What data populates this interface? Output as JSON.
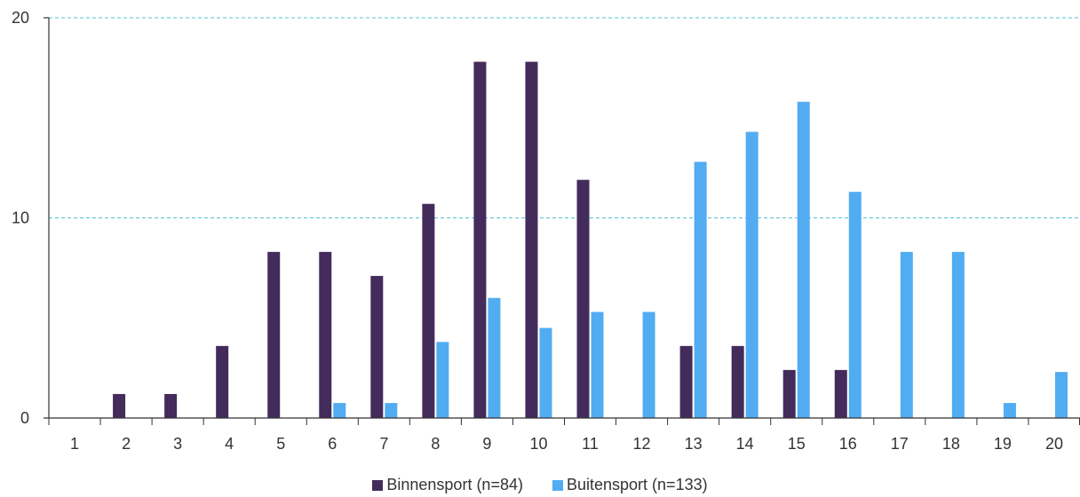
{
  "chart_data": {
    "type": "bar",
    "categories": [
      "1",
      "2",
      "3",
      "4",
      "5",
      "6",
      "7",
      "8",
      "9",
      "10",
      "11",
      "12",
      "13",
      "14",
      "15",
      "16",
      "17",
      "18",
      "19",
      "20"
    ],
    "series": [
      {
        "name": "Binnensport (n=84)",
        "color": "#432c5b",
        "values": [
          0,
          1.2,
          1.2,
          3.6,
          8.3,
          8.3,
          7.1,
          10.7,
          17.8,
          17.8,
          11.9,
          0,
          3.6,
          3.6,
          2.4,
          2.4,
          0,
          0,
          0,
          0
        ]
      },
      {
        "name": "Buitensport (n=133)",
        "color": "#52acf2",
        "values": [
          0,
          0,
          0,
          0,
          0,
          0.75,
          0.75,
          3.8,
          6.0,
          4.5,
          5.3,
          5.3,
          12.8,
          14.3,
          15.8,
          11.3,
          8.3,
          8.3,
          0.75,
          2.3
        ]
      }
    ],
    "ylim": [
      0,
      20
    ],
    "yticks": [
      "0",
      "10",
      "20"
    ],
    "grid": {
      "y": true,
      "style": "dashed",
      "color": "#56c1d8"
    },
    "legend": "bottom",
    "title": "",
    "xlabel": "",
    "ylabel": ""
  }
}
